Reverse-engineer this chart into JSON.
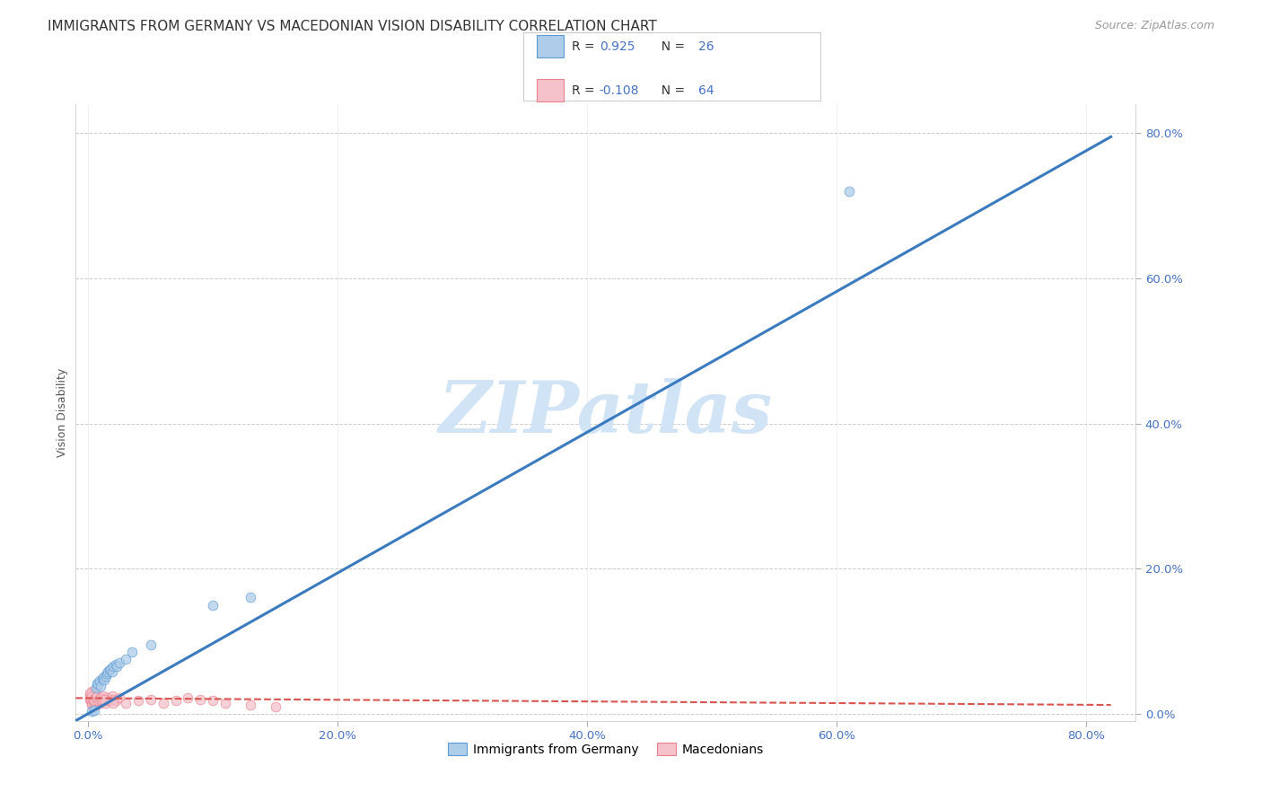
{
  "title": "IMMIGRANTS FROM GERMANY VS MACEDONIAN VISION DISABILITY CORRELATION CHART",
  "source": "Source: ZipAtlas.com",
  "ylabel": "Vision Disability",
  "ytick_labels": [
    "0.0%",
    "20.0%",
    "40.0%",
    "60.0%",
    "80.0%"
  ],
  "ytick_values": [
    0.0,
    0.2,
    0.4,
    0.6,
    0.8
  ],
  "xtick_labels": [
    "0.0%",
    "20.0%",
    "40.0%",
    "60.0%",
    "80.0%"
  ],
  "xtick_values": [
    0.0,
    0.2,
    0.4,
    0.6,
    0.8
  ],
  "xlim": [
    -0.01,
    0.84
  ],
  "ylim": [
    -0.01,
    0.84
  ],
  "legend_r_blue": "0.925",
  "legend_n_blue": "26",
  "legend_r_pink": "-0.108",
  "legend_n_pink": "64",
  "legend_label_blue": "Immigrants from Germany",
  "legend_label_pink": "Macedonians",
  "blue_color": "#aecde8",
  "blue_edge_color": "#5b9bd5",
  "blue_line_color": "#3a7abf",
  "pink_color": "#f5c2cb",
  "pink_edge_color": "#e8828f",
  "pink_line_color": "#d9534f",
  "tick_color": "#4472c4",
  "title_fontsize": 11.0,
  "source_fontsize": 9,
  "axis_label_fontsize": 9,
  "tick_fontsize": 9.5,
  "watermark_text": "ZIPatlas",
  "watermark_color": "#d0e4f5",
  "blue_scatter_x": [
    0.003,
    0.005,
    0.006,
    0.007,
    0.008,
    0.009,
    0.01,
    0.011,
    0.012,
    0.013,
    0.014,
    0.015,
    0.016,
    0.017,
    0.018,
    0.019,
    0.02,
    0.022,
    0.023,
    0.025,
    0.03,
    0.035,
    0.05,
    0.1,
    0.13,
    0.61
  ],
  "blue_scatter_y": [
    0.003,
    0.004,
    0.035,
    0.042,
    0.04,
    0.045,
    0.038,
    0.048,
    0.05,
    0.047,
    0.052,
    0.055,
    0.058,
    0.06,
    0.062,
    0.058,
    0.065,
    0.068,
    0.065,
    0.07,
    0.075,
    0.085,
    0.095,
    0.15,
    0.16,
    0.72
  ],
  "pink_scatter_x": [
    0.001,
    0.001,
    0.002,
    0.002,
    0.002,
    0.003,
    0.003,
    0.003,
    0.004,
    0.004,
    0.004,
    0.005,
    0.005,
    0.005,
    0.006,
    0.006,
    0.006,
    0.007,
    0.007,
    0.007,
    0.008,
    0.008,
    0.008,
    0.009,
    0.009,
    0.01,
    0.01,
    0.011,
    0.012,
    0.013,
    0.014,
    0.015,
    0.016,
    0.017,
    0.018,
    0.019,
    0.02,
    0.022,
    0.025,
    0.03,
    0.04,
    0.05,
    0.06,
    0.07,
    0.08,
    0.09,
    0.1,
    0.11,
    0.13,
    0.15,
    0.001,
    0.002,
    0.003,
    0.004,
    0.005,
    0.006,
    0.007,
    0.008,
    0.009,
    0.01,
    0.011,
    0.012,
    0.013,
    0.02
  ],
  "pink_scatter_y": [
    0.02,
    0.025,
    0.022,
    0.018,
    0.028,
    0.015,
    0.03,
    0.012,
    0.018,
    0.025,
    0.01,
    0.02,
    0.015,
    0.022,
    0.018,
    0.012,
    0.02,
    0.015,
    0.025,
    0.018,
    0.022,
    0.015,
    0.02,
    0.018,
    0.022,
    0.015,
    0.02,
    0.018,
    0.022,
    0.02,
    0.015,
    0.018,
    0.022,
    0.02,
    0.018,
    0.025,
    0.02,
    0.018,
    0.022,
    0.015,
    0.018,
    0.02,
    0.015,
    0.018,
    0.022,
    0.02,
    0.018,
    0.015,
    0.012,
    0.01,
    0.028,
    0.022,
    0.025,
    0.02,
    0.018,
    0.022,
    0.025,
    0.018,
    0.02,
    0.022,
    0.018,
    0.025,
    0.02,
    0.015
  ],
  "blue_trendline_x": [
    -0.01,
    0.82
  ],
  "blue_trendline_y": [
    -0.0097,
    0.795
  ],
  "pink_trendline_x": [
    -0.01,
    0.82
  ],
  "pink_trendline_y": [
    0.0215,
    0.012
  ]
}
